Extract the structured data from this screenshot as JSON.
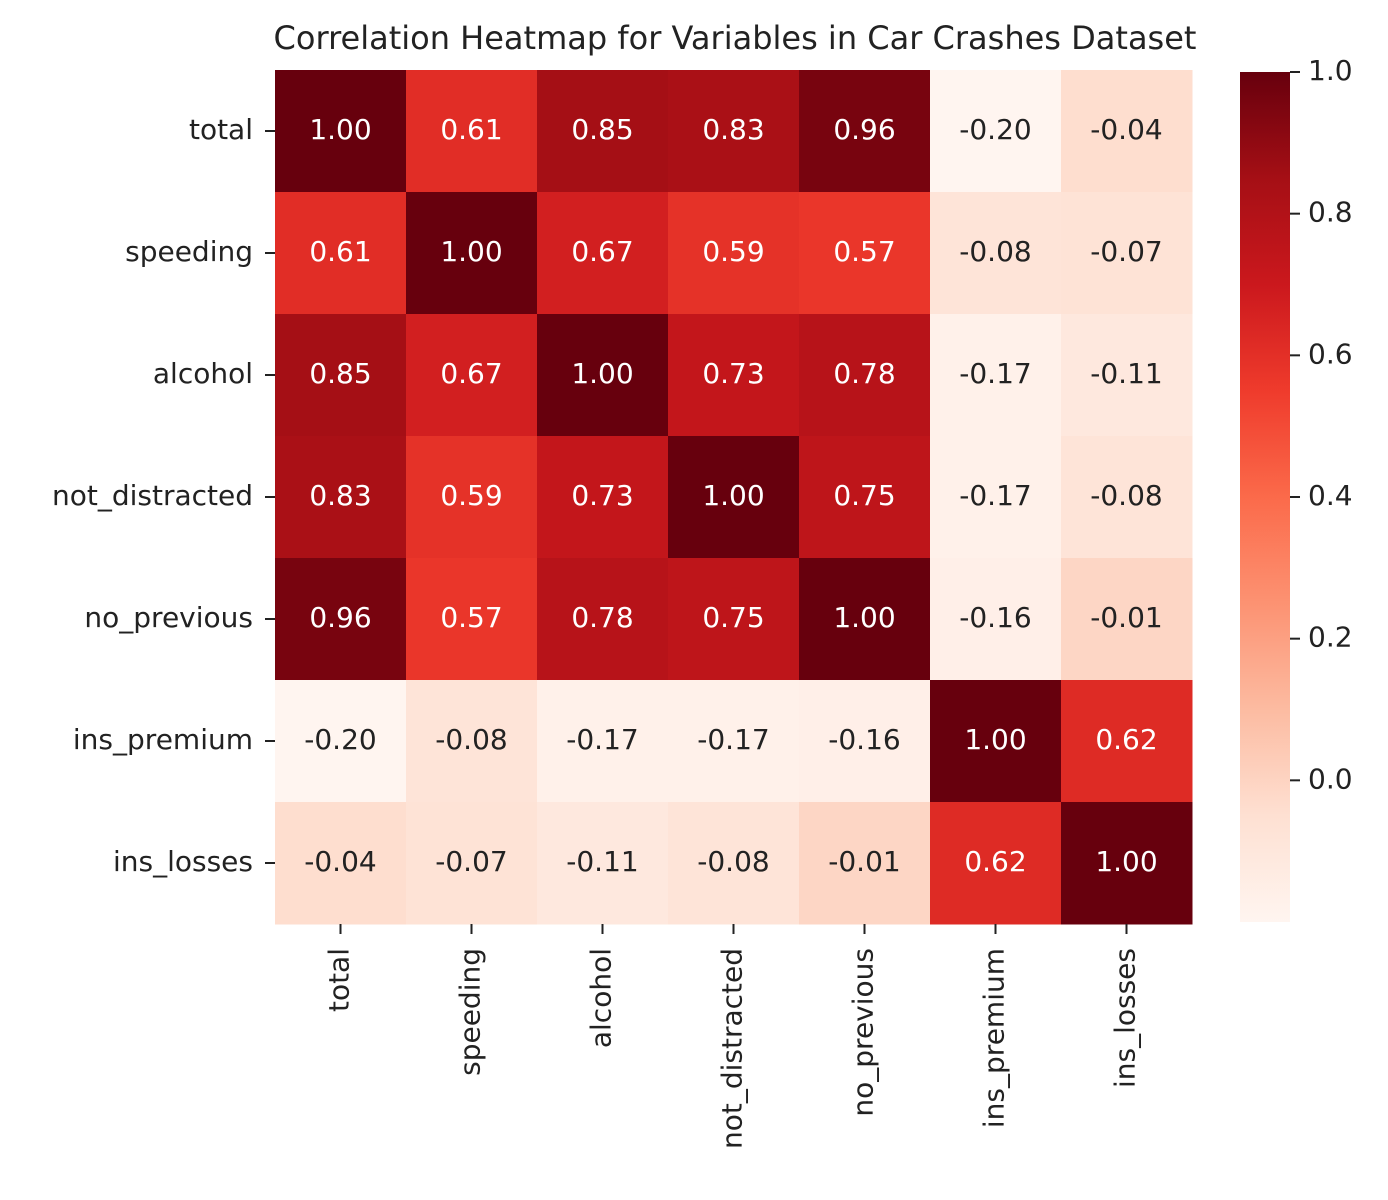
{
  "chart_data": {
    "type": "heatmap",
    "title": "Correlation Heatmap for Variables in Car Crashes Dataset",
    "categories": [
      "total",
      "speeding",
      "alcohol",
      "not_distracted",
      "no_previous",
      "ins_premium",
      "ins_losses"
    ],
    "y_categories": [
      "total",
      "speeding",
      "alcohol",
      "not_distracted",
      "no_previous",
      "ins_premium",
      "ins_losses"
    ],
    "values": [
      [
        1,
        0.61,
        0.85,
        0.83,
        0.96,
        -0.2,
        -0.04
      ],
      [
        0.61,
        1,
        0.67,
        0.59,
        0.57,
        -0.08,
        -0.07
      ],
      [
        0.85,
        0.67,
        1,
        0.73,
        0.78,
        -0.17,
        -0.11
      ],
      [
        0.83,
        0.59,
        0.73,
        1,
        0.75,
        -0.17,
        -0.08
      ],
      [
        0.96,
        0.57,
        0.78,
        0.75,
        1,
        -0.16,
        -0.01
      ],
      [
        -0.2,
        -0.08,
        -0.17,
        -0.17,
        -0.16,
        1,
        0.62
      ],
      [
        -0.04,
        -0.07,
        -0.11,
        -0.08,
        -0.01,
        0.62,
        1
      ]
    ],
    "value_labels": [
      [
        "1.00",
        "0.61",
        "0.85",
        "0.83",
        "0.96",
        "-0.20",
        "-0.04"
      ],
      [
        "0.61",
        "1.00",
        "0.67",
        "0.59",
        "0.57",
        "-0.08",
        "-0.07"
      ],
      [
        "0.85",
        "0.67",
        "1.00",
        "0.73",
        "0.78",
        "-0.17",
        "-0.11"
      ],
      [
        "0.83",
        "0.59",
        "0.73",
        "1.00",
        "0.75",
        "-0.17",
        "-0.08"
      ],
      [
        "0.96",
        "0.57",
        "0.78",
        "0.75",
        "1.00",
        "-0.16",
        "-0.01"
      ],
      [
        "-0.20",
        "-0.08",
        "-0.17",
        "-0.17",
        "-0.16",
        "1.00",
        "0.62"
      ],
      [
        "-0.04",
        "-0.07",
        "-0.11",
        "-0.08",
        "-0.01",
        "0.62",
        "1.00"
      ]
    ],
    "colorscale": [
      "#fff5f0",
      "#fee0d2",
      "#fcbba1",
      "#fc9272",
      "#fb6a4a",
      "#ef3b2c",
      "#cb181d",
      "#a50f15",
      "#67000d"
    ],
    "zlim": [
      -0.2,
      1
    ],
    "zticks": [
      {
        "value": 0,
        "label": "0.0"
      },
      0.2,
      0.4,
      0.6,
      0.8,
      {
        "value": 1,
        "label": "1.0"
      }
    ]
  }
}
